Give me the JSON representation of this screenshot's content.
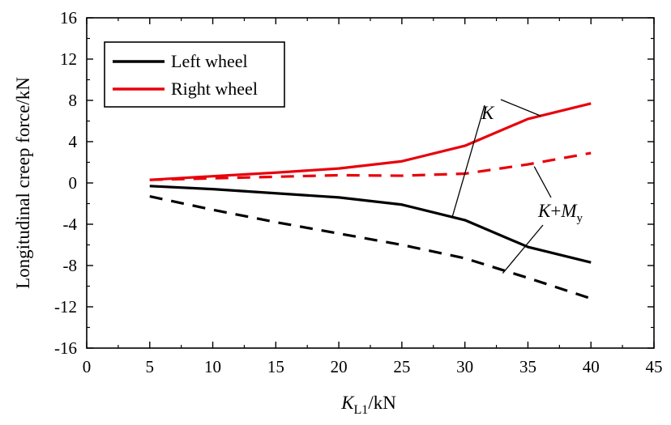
{
  "chart_data": {
    "type": "line",
    "title": "",
    "xlabel": {
      "main": "K",
      "sub": "L1",
      "unit": "/kN"
    },
    "ylabel": "Longitudinal creep force/kN",
    "xlim": [
      0,
      45
    ],
    "ylim": [
      -16,
      16
    ],
    "x_ticks": [
      0,
      5,
      10,
      15,
      20,
      25,
      30,
      35,
      40,
      45
    ],
    "y_ticks": [
      -16,
      -12,
      -8,
      -4,
      0,
      4,
      8,
      12,
      16
    ],
    "x": [
      5,
      10,
      15,
      20,
      25,
      30,
      35,
      40
    ],
    "series": [
      {
        "name": "Left wheel",
        "condition": "K",
        "color": "#000000",
        "dash": "solid",
        "values": [
          -0.3,
          -0.6,
          -1.0,
          -1.4,
          -2.1,
          -3.6,
          -6.2,
          -7.7
        ]
      },
      {
        "name": "Right wheel",
        "condition": "K",
        "color": "#e8000b",
        "dash": "solid",
        "values": [
          0.3,
          0.65,
          1.0,
          1.4,
          2.1,
          3.6,
          6.2,
          7.7
        ]
      },
      {
        "name": "Left wheel",
        "condition": "K+My",
        "color": "#000000",
        "dash": "dashed",
        "values": [
          -1.3,
          -2.6,
          -3.8,
          -4.9,
          -6.0,
          -7.3,
          -9.2,
          -11.2
        ]
      },
      {
        "name": "Right wheel",
        "condition": "K+My",
        "color": "#e8000b",
        "dash": "dashed",
        "values": [
          0.3,
          0.45,
          0.6,
          0.75,
          0.7,
          0.9,
          1.8,
          2.9
        ]
      }
    ],
    "legend": {
      "placement": "top-left",
      "entries": [
        {
          "label": "Left wheel",
          "color": "#000000"
        },
        {
          "label": "Right wheel",
          "color": "#e8000b"
        }
      ]
    },
    "annotations": [
      {
        "text": "K",
        "target_x": [
          36,
          30.5
        ]
      },
      {
        "text": "K+M",
        "sub": "y",
        "target_x": [
          35.5,
          33
        ]
      }
    ],
    "grid": false
  }
}
